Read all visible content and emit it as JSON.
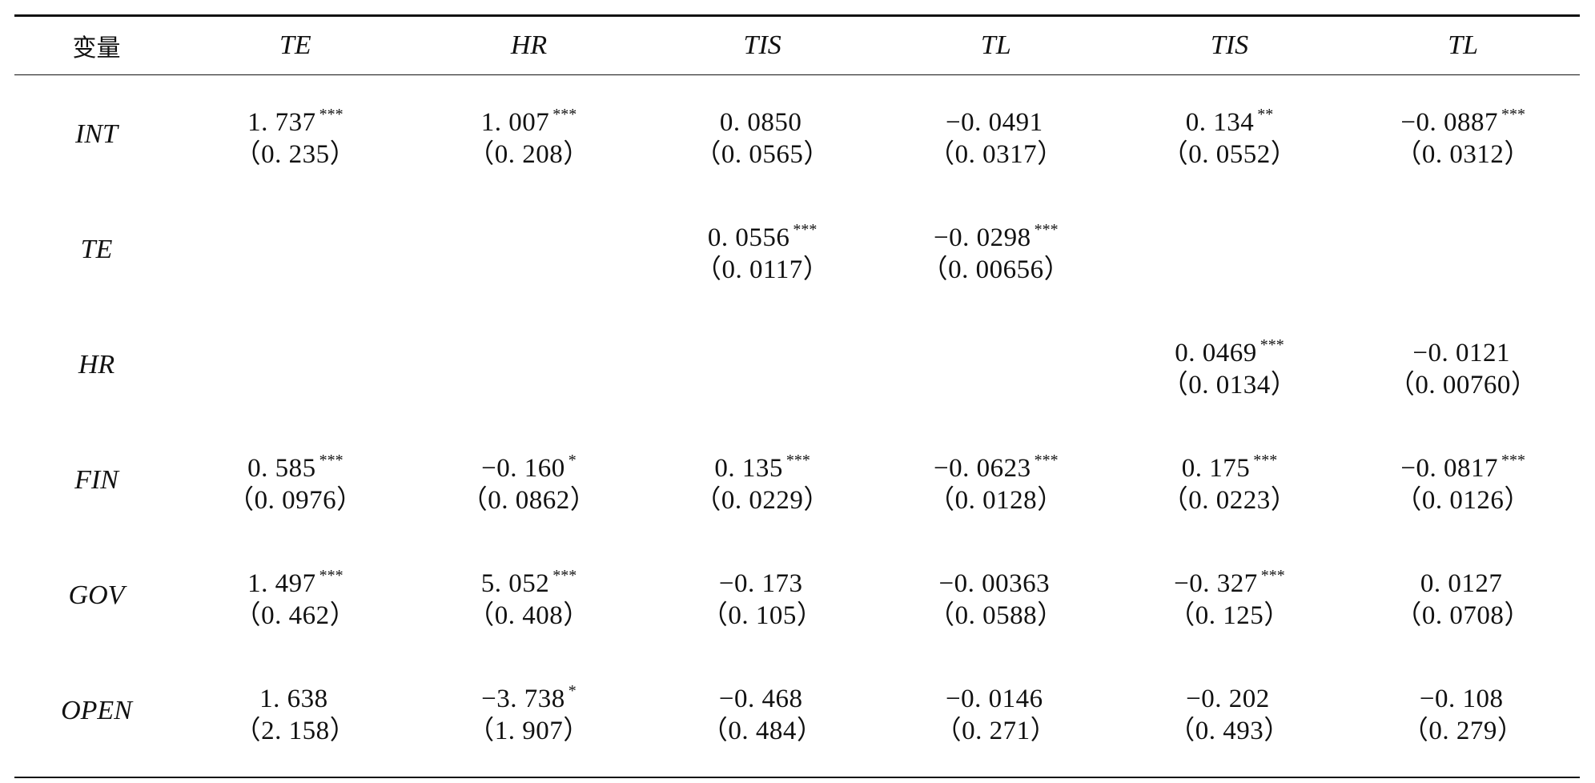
{
  "table": {
    "headers": [
      "变量",
      "TE",
      "HR",
      "TIS",
      "TL",
      "TIS",
      "TL"
    ],
    "rows": [
      {
        "label": "INT",
        "cells": [
          {
            "coef": "1. 737",
            "stars": "***",
            "se": "（0. 235）"
          },
          {
            "coef": "1. 007",
            "stars": "***",
            "se": "（0. 208）"
          },
          {
            "coef": "0. 0850",
            "stars": "",
            "se": "（0. 0565）"
          },
          {
            "coef": "−0. 0491",
            "stars": "",
            "se": "（0. 0317）"
          },
          {
            "coef": "0. 134",
            "stars": "**",
            "se": "（0. 0552）"
          },
          {
            "coef": "−0. 0887",
            "stars": "***",
            "se": "（0. 0312）"
          }
        ]
      },
      {
        "label": "TE",
        "cells": [
          {
            "coef": "",
            "stars": "",
            "se": ""
          },
          {
            "coef": "",
            "stars": "",
            "se": ""
          },
          {
            "coef": "0. 0556",
            "stars": "***",
            "se": "（0. 0117）"
          },
          {
            "coef": "−0. 0298",
            "stars": "***",
            "se": "（0. 00656）"
          },
          {
            "coef": "",
            "stars": "",
            "se": ""
          },
          {
            "coef": "",
            "stars": "",
            "se": ""
          }
        ]
      },
      {
        "label": "HR",
        "cells": [
          {
            "coef": "",
            "stars": "",
            "se": ""
          },
          {
            "coef": "",
            "stars": "",
            "se": ""
          },
          {
            "coef": "",
            "stars": "",
            "se": ""
          },
          {
            "coef": "",
            "stars": "",
            "se": ""
          },
          {
            "coef": "0. 0469",
            "stars": "***",
            "se": "（0. 0134）"
          },
          {
            "coef": "−0. 0121",
            "stars": "",
            "se": "（0. 00760）"
          }
        ]
      },
      {
        "label": "FIN",
        "cells": [
          {
            "coef": "0. 585",
            "stars": "***",
            "se": "（0. 0976）"
          },
          {
            "coef": "−0. 160",
            "stars": "*",
            "se": "（0. 0862）"
          },
          {
            "coef": "0. 135",
            "stars": "***",
            "se": "（0. 0229）"
          },
          {
            "coef": "−0. 0623",
            "stars": "***",
            "se": "（0. 0128）"
          },
          {
            "coef": "0. 175",
            "stars": "***",
            "se": "（0. 0223）"
          },
          {
            "coef": "−0. 0817",
            "stars": "***",
            "se": "（0. 0126）"
          }
        ]
      },
      {
        "label": "GOV",
        "cells": [
          {
            "coef": "1. 497",
            "stars": "***",
            "se": "（0. 462）"
          },
          {
            "coef": "5. 052",
            "stars": "***",
            "se": "（0. 408）"
          },
          {
            "coef": "−0. 173",
            "stars": "",
            "se": "（0. 105）"
          },
          {
            "coef": "−0. 00363",
            "stars": "",
            "se": "（0. 0588）"
          },
          {
            "coef": "−0. 327",
            "stars": "***",
            "se": "（0. 125）"
          },
          {
            "coef": "0. 0127",
            "stars": "",
            "se": "（0. 0708）"
          }
        ]
      },
      {
        "label": "OPEN",
        "cells": [
          {
            "coef": "1. 638",
            "stars": "",
            "se": "（2. 158）"
          },
          {
            "coef": "−3. 738",
            "stars": "*",
            "se": "（1. 907）"
          },
          {
            "coef": "−0. 468",
            "stars": "",
            "se": "（0. 484）"
          },
          {
            "coef": "−0. 0146",
            "stars": "",
            "se": "（0. 271）"
          },
          {
            "coef": "−0. 202",
            "stars": "",
            "se": "（0. 493）"
          },
          {
            "coef": "−0. 108",
            "stars": "",
            "se": "（0. 279）"
          }
        ]
      }
    ]
  }
}
